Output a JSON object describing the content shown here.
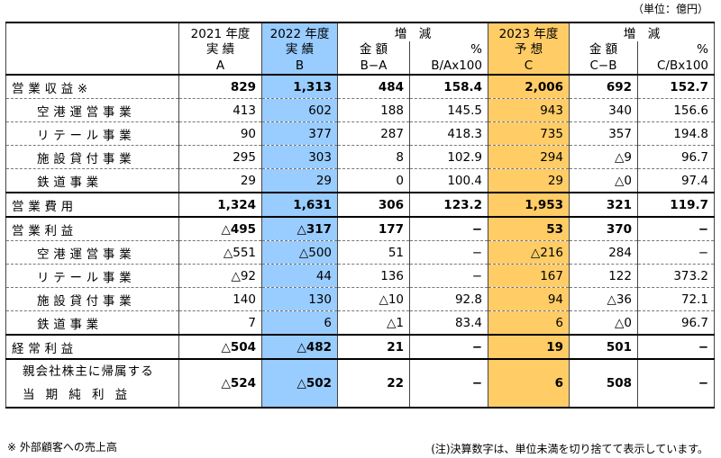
{
  "unit": "（単位：億円）",
  "headers": {
    "y2021": "2021 年度",
    "y2022": "2022 年度",
    "chg1": "増　減",
    "y2023": "2023 年度",
    "chg2": "増　減",
    "y2021_sub": "実 績",
    "y2022_sub": "実 績",
    "chg1_amt": "金 額",
    "chg1_pct": "%",
    "y2023_sub": "予 想",
    "chg2_amt": "金 額",
    "chg2_pct": "%",
    "y2021_code": "A",
    "y2022_code": "B",
    "chg1_amt_code": "B−A",
    "chg1_pct_code": "B/Ax100",
    "y2023_code": "C",
    "chg2_amt_code": "C−B",
    "chg2_pct_code": "C/Bx100"
  },
  "rows": [
    {
      "label": "営業収益※",
      "a": "829",
      "b": "1,313",
      "ba": "484",
      "bpct": "158.4",
      "c": "2,006",
      "cb": "692",
      "cpct": "152.7"
    },
    {
      "label": "空港運営事業",
      "a": "413",
      "b": "602",
      "ba": "188",
      "bpct": "145.5",
      "c": "943",
      "cb": "340",
      "cpct": "156.6"
    },
    {
      "label": "リテール事業",
      "a": "90",
      "b": "377",
      "ba": "287",
      "bpct": "418.3",
      "c": "735",
      "cb": "357",
      "cpct": "194.8"
    },
    {
      "label": "施設貸付事業",
      "a": "295",
      "b": "303",
      "ba": "8",
      "bpct": "102.9",
      "c": "294",
      "cb": "△9",
      "cpct": "96.7"
    },
    {
      "label": "鉄道事業",
      "a": "29",
      "b": "29",
      "ba": "0",
      "bpct": "100.4",
      "c": "29",
      "cb": "△0",
      "cpct": "97.4"
    },
    {
      "label": "営業費用",
      "a": "1,324",
      "b": "1,631",
      "ba": "306",
      "bpct": "123.2",
      "c": "1,953",
      "cb": "321",
      "cpct": "119.7"
    },
    {
      "label": "営業利益",
      "a": "△495",
      "b": "△317",
      "ba": "177",
      "bpct": "−",
      "c": "53",
      "cb": "370",
      "cpct": "−"
    },
    {
      "label": "空港運営事業",
      "a": "△551",
      "b": "△500",
      "ba": "51",
      "bpct": "−",
      "c": "△216",
      "cb": "284",
      "cpct": "−"
    },
    {
      "label": "リテール事業",
      "a": "△92",
      "b": "44",
      "ba": "136",
      "bpct": "−",
      "c": "167",
      "cb": "122",
      "cpct": "373.2"
    },
    {
      "label": "施設貸付事業",
      "a": "140",
      "b": "130",
      "ba": "△10",
      "bpct": "92.8",
      "c": "94",
      "cb": "△36",
      "cpct": "72.1"
    },
    {
      "label": "鉄道事業",
      "a": "7",
      "b": "6",
      "ba": "△1",
      "bpct": "83.4",
      "c": "6",
      "cb": "△0",
      "cpct": "96.7"
    },
    {
      "label": "経常利益",
      "a": "△504",
      "b": "△482",
      "ba": "21",
      "bpct": "−",
      "c": "19",
      "cb": "501",
      "cpct": "−"
    },
    {
      "label1": "親会社株主に帰属する",
      "label2": "当期純利益",
      "a": "△524",
      "b": "△502",
      "ba": "22",
      "bpct": "−",
      "c": "6",
      "cb": "508",
      "cpct": "−"
    }
  ],
  "notes": {
    "left": "※ 外部顧客への売上高",
    "right": "(注)決算数字は、単位未満を切り捨てて表示しています。"
  },
  "colors": {
    "col_b": "#99ccff",
    "col_c": "#ffcc66"
  }
}
